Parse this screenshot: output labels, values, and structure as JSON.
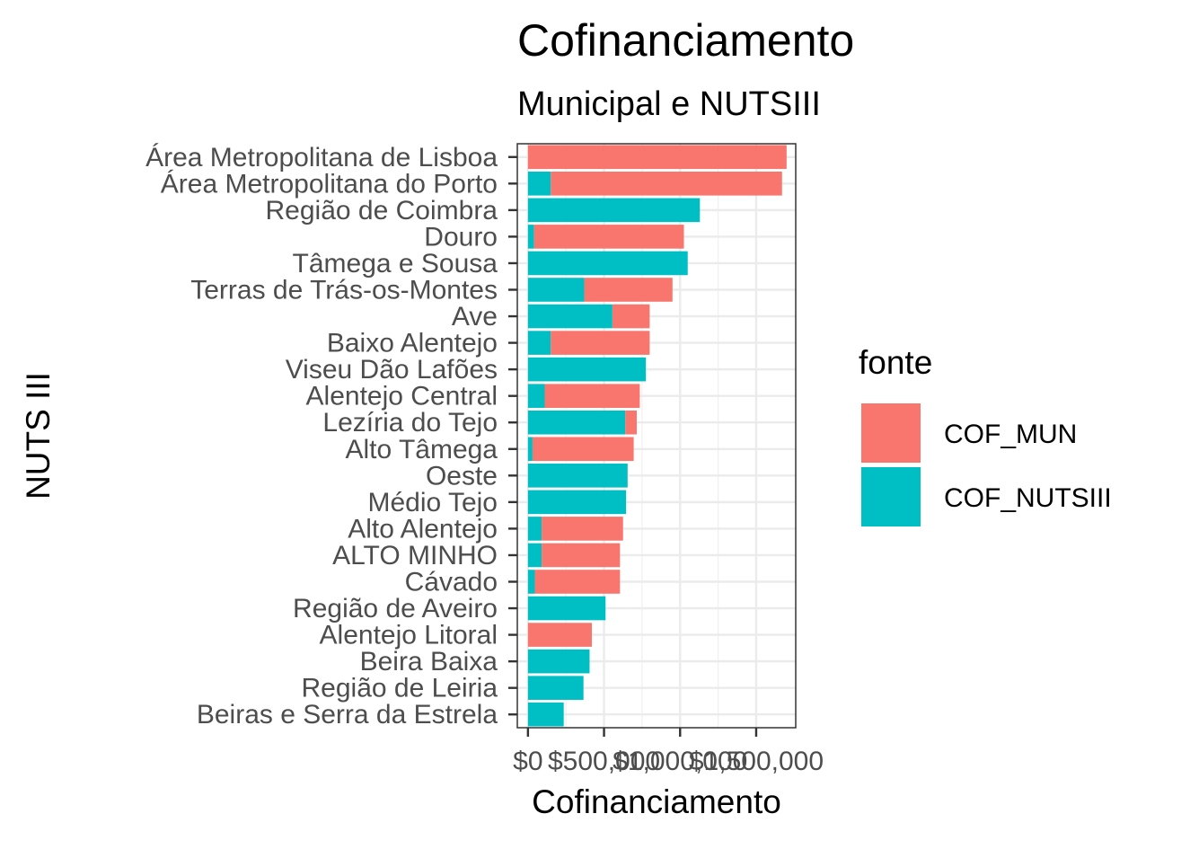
{
  "chart_data": {
    "type": "bar",
    "orientation": "horizontal",
    "stacked": true,
    "title": "Cofinanciamento",
    "subtitle": "Municipal e NUTSIII",
    "xlabel": "Cofinanciamento",
    "ylabel": "NUTS III",
    "xlim": [
      -70000,
      1760000
    ],
    "x_ticks": [
      0,
      500000,
      1000000,
      1500000
    ],
    "x_tick_labels": [
      "$0",
      "$500,000",
      "$1,000,000",
      "$1,500,000"
    ],
    "grid": true,
    "legend": {
      "title": "fonte",
      "position": "right",
      "entries": [
        {
          "name": "COF_MUN",
          "color": "#F8766D"
        },
        {
          "name": "COF_NUTSIII",
          "color": "#00BFC4"
        }
      ]
    },
    "categories": [
      "Área Metropolitana de Lisboa",
      "Área Metropolitana do Porto",
      "Região de Coimbra",
      "Douro",
      "Tâmega e Sousa",
      "Terras de Trás-os-Montes",
      "Ave",
      "Baixo Alentejo",
      "Viseu Dão Lafões",
      "Alentejo Central",
      "Lezíria do Tejo",
      "Alto Tâmega",
      "Oeste",
      "Médio Tejo",
      "Alto Alentejo",
      "ALTO MINHO",
      "Cávado",
      "Região de Aveiro",
      "Alentejo Litoral",
      "Beira Baixa",
      "Região de Leiria",
      "Beiras e Serra da Estrela"
    ],
    "series": [
      {
        "name": "COF_NUTSIII",
        "color": "#00BFC4",
        "values": [
          0,
          150000,
          1130000,
          40000,
          1050000,
          370000,
          555000,
          150000,
          775000,
          110000,
          640000,
          30000,
          655000,
          645000,
          90000,
          90000,
          45000,
          510000,
          0,
          405000,
          365000,
          235000
        ]
      },
      {
        "name": "COF_MUN",
        "color": "#F8766D",
        "values": [
          1700000,
          1520000,
          0,
          985000,
          0,
          580000,
          245000,
          650000,
          0,
          625000,
          75000,
          665000,
          0,
          0,
          535000,
          515000,
          560000,
          0,
          420000,
          0,
          0,
          0
        ]
      }
    ]
  }
}
